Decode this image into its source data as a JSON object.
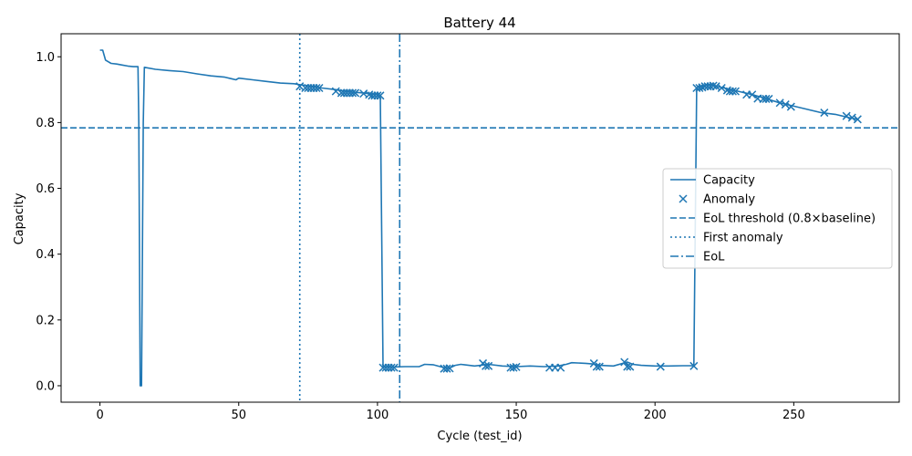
{
  "chart_data": {
    "type": "line",
    "title": "Battery 44",
    "xlabel": "Cycle (test_id)",
    "ylabel": "Capacity",
    "xlim": [
      -14,
      288
    ],
    "ylim": [
      -0.05,
      1.07
    ],
    "xticks": [
      0,
      50,
      100,
      150,
      200,
      250
    ],
    "yticks": [
      0.0,
      0.2,
      0.4,
      0.6,
      0.8,
      1.0
    ],
    "grid": false,
    "legend_position": "center-right",
    "color": "#1f77b4",
    "series": [
      {
        "name": "Capacity",
        "style": "solid",
        "x": [
          0,
          1,
          2,
          3,
          4,
          6,
          8,
          10,
          12,
          13.7,
          14,
          14.5,
          15,
          15.6,
          16,
          20,
          25,
          30,
          35,
          40,
          45,
          49,
          50,
          55,
          60,
          65,
          70,
          72,
          75,
          80,
          85,
          90,
          95,
          99,
          100,
          101,
          102,
          103,
          104,
          105,
          110,
          115,
          117,
          120,
          124,
          126,
          128,
          130,
          135,
          140,
          145,
          150,
          155,
          160,
          165,
          168,
          170,
          175,
          178,
          180,
          185,
          190,
          192,
          195,
          200,
          205,
          210,
          214,
          215,
          216,
          218,
          220,
          222,
          225,
          228,
          230,
          235,
          240,
          245,
          250,
          255,
          260,
          265,
          270,
          273
        ],
        "y": [
          1.02,
          1.02,
          0.99,
          0.985,
          0.98,
          0.978,
          0.975,
          0.972,
          0.97,
          0.97,
          0.8,
          0.0,
          0.0,
          0.8,
          0.968,
          0.962,
          0.958,
          0.955,
          0.948,
          0.942,
          0.938,
          0.93,
          0.935,
          0.93,
          0.925,
          0.92,
          0.918,
          0.915,
          0.912,
          0.905,
          0.9,
          0.893,
          0.89,
          0.885,
          0.886,
          0.882,
          0.058,
          0.057,
          0.058,
          0.057,
          0.058,
          0.058,
          0.065,
          0.064,
          0.055,
          0.054,
          0.062,
          0.065,
          0.06,
          0.065,
          0.06,
          0.058,
          0.06,
          0.058,
          0.06,
          0.065,
          0.07,
          0.068,
          0.066,
          0.062,
          0.06,
          0.072,
          0.065,
          0.062,
          0.06,
          0.06,
          0.061,
          0.061,
          0.905,
          0.91,
          0.912,
          0.915,
          0.91,
          0.905,
          0.898,
          0.895,
          0.885,
          0.873,
          0.86,
          0.85,
          0.84,
          0.83,
          0.825,
          0.815,
          0.81
        ]
      },
      {
        "name": "Anomaly",
        "style": "marker-x",
        "x": [
          72,
          74,
          75,
          76,
          77,
          78,
          79,
          85,
          87,
          88,
          89,
          90,
          91,
          92,
          95,
          97,
          98,
          99,
          100,
          101,
          102,
          103,
          104,
          105,
          106,
          124,
          125,
          126,
          138,
          139,
          140,
          148,
          149,
          150,
          162,
          164,
          166,
          178,
          179,
          180,
          189,
          190,
          191,
          202,
          214,
          215,
          216,
          217,
          218,
          219,
          220,
          221,
          222,
          224,
          226,
          227,
          228,
          229,
          233,
          235,
          237,
          239,
          240,
          241,
          245,
          247,
          249,
          261,
          269,
          271,
          273
        ],
        "y": [
          0.91,
          0.905,
          0.905,
          0.905,
          0.905,
          0.905,
          0.905,
          0.895,
          0.89,
          0.89,
          0.89,
          0.89,
          0.89,
          0.89,
          0.888,
          0.885,
          0.882,
          0.882,
          0.882,
          0.882,
          0.055,
          0.055,
          0.055,
          0.055,
          0.055,
          0.052,
          0.052,
          0.053,
          0.068,
          0.06,
          0.06,
          0.055,
          0.055,
          0.057,
          0.055,
          0.055,
          0.055,
          0.068,
          0.058,
          0.058,
          0.072,
          0.058,
          0.058,
          0.058,
          0.06,
          0.905,
          0.905,
          0.907,
          0.91,
          0.91,
          0.91,
          0.912,
          0.91,
          0.905,
          0.898,
          0.895,
          0.895,
          0.895,
          0.885,
          0.885,
          0.873,
          0.872,
          0.872,
          0.872,
          0.86,
          0.855,
          0.848,
          0.83,
          0.82,
          0.815,
          0.81
        ]
      }
    ],
    "reference_lines": [
      {
        "name": "EoL threshold (0.8×baseline)",
        "orientation": "horizontal",
        "value": 0.784,
        "style": "dashed"
      },
      {
        "name": "First anomaly",
        "orientation": "vertical",
        "value": 72,
        "style": "dotted"
      },
      {
        "name": "EoL",
        "orientation": "vertical",
        "value": 108,
        "style": "dashdot"
      }
    ]
  }
}
